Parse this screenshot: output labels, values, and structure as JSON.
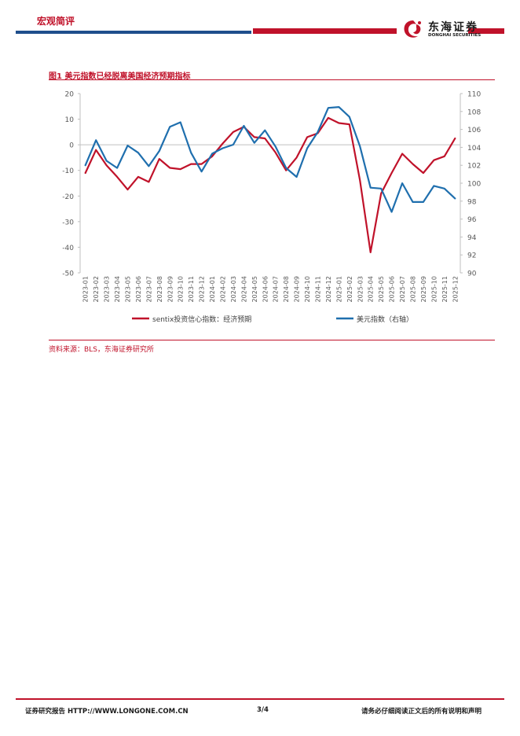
{
  "header": {
    "section": "宏观简评",
    "logo_cn": "东海证券",
    "logo_en": "DONGHAI SECURITIES",
    "brand_red": "#c0122a",
    "brand_blue": "#1f4e8c"
  },
  "figure": {
    "title": "图1  美元指数已经脱离美国经济预期指标",
    "source": "资料来源：BLS，东海证券研究所"
  },
  "chart_data": {
    "type": "line",
    "categories": [
      "2023-01",
      "2023-02",
      "2023-03",
      "2023-04",
      "2023-05",
      "2023-06",
      "2023-07",
      "2023-08",
      "2023-09",
      "2023-10",
      "2023-11",
      "2023-12",
      "2024-01",
      "2024-02",
      "2024-03",
      "2024-04",
      "2024-05",
      "2024-06",
      "2024-07",
      "2024-08",
      "2024-09",
      "2024-10",
      "2024-11",
      "2024-12",
      "2025-01",
      "2025-02",
      "2025-03",
      "2025-04",
      "2025-05",
      "2025-06",
      "2025-07",
      "2025-08",
      "2025-09",
      "2025-10",
      "2025-11",
      "2025-12"
    ],
    "left_axis": {
      "min": -50,
      "max": 20,
      "ticks": [
        20,
        10,
        0,
        -10,
        -20,
        -30,
        -40,
        -50
      ]
    },
    "right_axis": {
      "min": 90,
      "max": 110,
      "ticks": [
        110,
        108,
        106,
        104,
        102,
        100,
        98,
        96,
        94,
        92,
        90
      ]
    },
    "series": [
      {
        "name": "sentix投资信心指数：经济预期",
        "axis": "left",
        "color": "#c0122a",
        "values": [
          -11,
          -2,
          -8,
          -12.5,
          -17.5,
          -12.5,
          -14.5,
          -5.5,
          -9,
          -9.5,
          -7.5,
          -7.5,
          -4.5,
          0.5,
          5,
          7,
          3,
          2.5,
          -3,
          -10,
          -5,
          3,
          4.5,
          10.5,
          8.5,
          8,
          -14,
          -42,
          -19,
          -11,
          -3.5,
          -7.5,
          -11,
          -6,
          -4.5,
          2.5
        ]
      },
      {
        "name": "美元指数（右轴）",
        "axis": "right",
        "color": "#1f6fae",
        "values": [
          102,
          104.8,
          102.5,
          101.7,
          104.2,
          103.4,
          101.9,
          103.6,
          106.3,
          106.8,
          103.4,
          101.3,
          103.3,
          103.9,
          104.3,
          106.4,
          104.5,
          105.9,
          104.1,
          101.7,
          100.7,
          103.9,
          105.7,
          108.4,
          108.5,
          107.4,
          104.1,
          99.5,
          99.4,
          96.8,
          100,
          97.9,
          97.9,
          99.7,
          99.4,
          98.3
        ]
      }
    ]
  },
  "footer": {
    "left": "证券研究报告    HTTP://WWW.LONGONE.COM.CN",
    "page": "3/4",
    "right": "请务必仔细阅读正文后的所有说明和声明"
  }
}
